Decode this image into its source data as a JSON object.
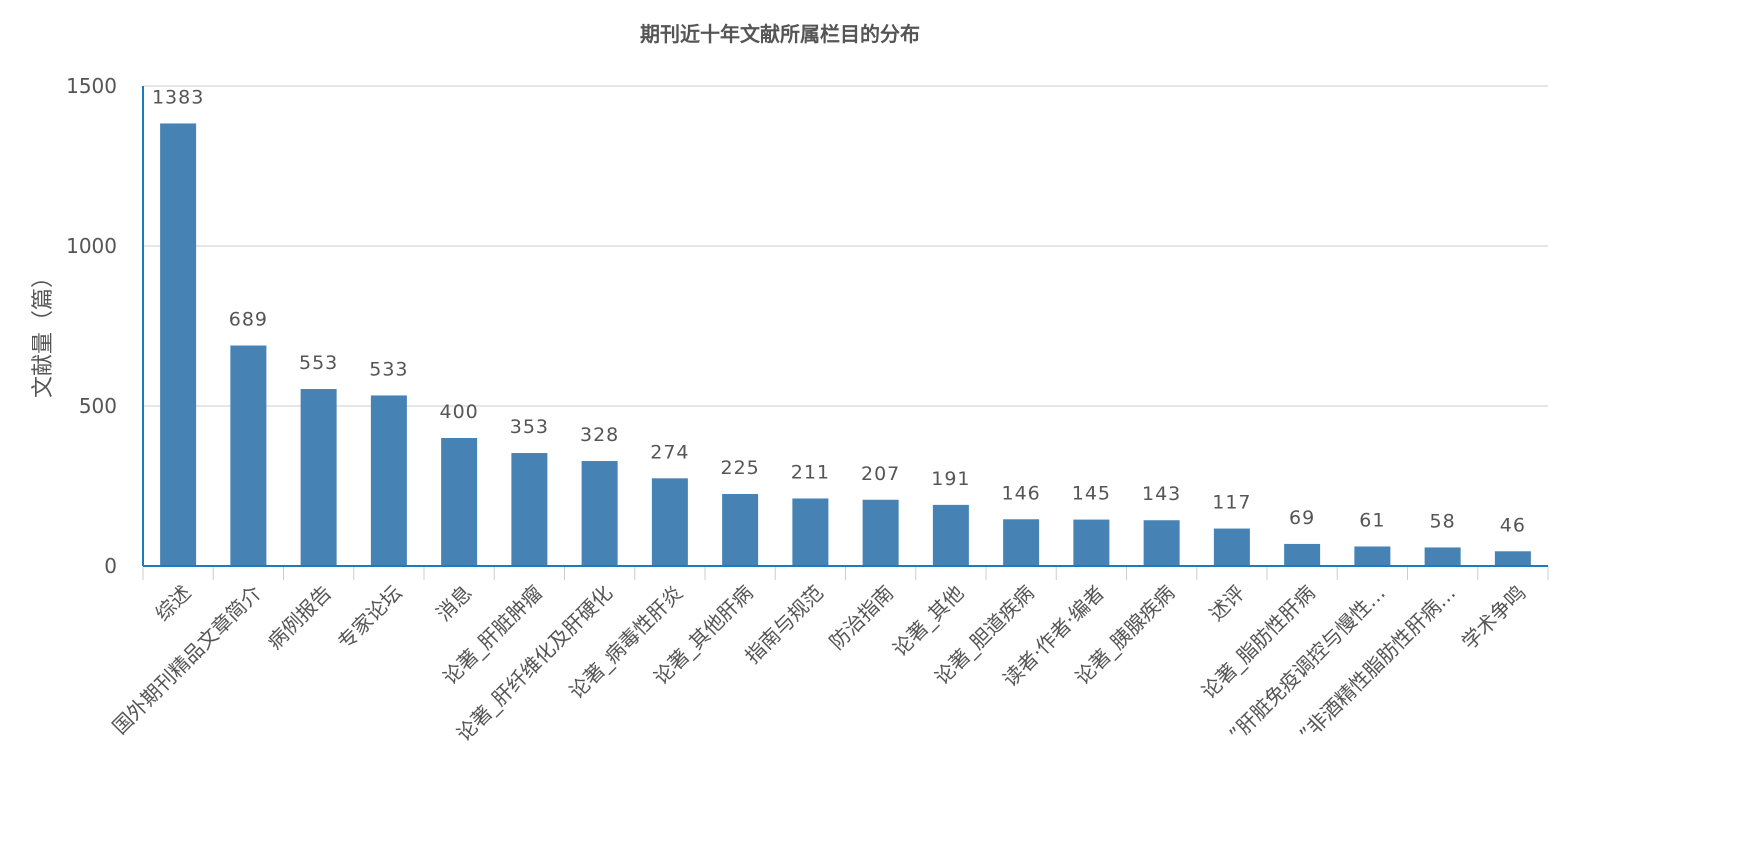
{
  "chart_data": {
    "type": "bar",
    "title": "期刊近十年文献所属栏目的分布",
    "ylabel": "文献量（篇）",
    "xlabel": "",
    "ylim": [
      0,
      1500
    ],
    "yticks": [
      0,
      500,
      1000,
      1500
    ],
    "grid": true,
    "categories": [
      "综述",
      "国外期刊精品文章简介",
      "病例报告",
      "专家论坛",
      "消息",
      "论著_肝脏肿瘤",
      "论著_肝纤维化及肝硬化",
      "论著_病毒性肝炎",
      "论著_其他肝病",
      "指南与规范",
      "防治指南",
      "论著_其他",
      "论著_胆道疾病",
      "读者·作者·编者",
      "论著_胰腺疾病",
      "述评",
      "论著_脂肪性肝病",
      "”肝脏免疫调控与慢性…",
      "”非酒精性脂肪性肝病…",
      "学术争鸣"
    ],
    "values": [
      1383,
      689,
      553,
      533,
      400,
      353,
      328,
      274,
      225,
      211,
      207,
      191,
      146,
      145,
      143,
      117,
      69,
      61,
      58,
      46
    ],
    "colors": {
      "bar": "#4682b4",
      "axis": "#1a7bc1",
      "grid": "#cccccc",
      "text": "#555555"
    }
  }
}
